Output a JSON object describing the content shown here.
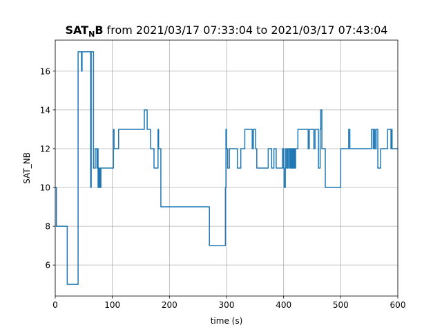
{
  "chart_data": {
    "type": "line",
    "title_bold_main": "SAT",
    "title_bold_sub": "N",
    "title_bold_end": "B",
    "title_rest": " from 2021/03/17 07:33:04 to 2021/03/17 07:43:04",
    "xlabel": "time (s)",
    "ylabel": "SAT_NB",
    "xlim": [
      0,
      600
    ],
    "ylim": [
      4.4,
      17.6
    ],
    "xticks": [
      0,
      100,
      200,
      300,
      400,
      500,
      600
    ],
    "xtick_labels": [
      "0",
      "100",
      "200",
      "300",
      "400",
      "500",
      "600"
    ],
    "yticks": [
      6,
      8,
      10,
      12,
      14,
      16
    ],
    "ytick_labels": [
      "6",
      "8",
      "10",
      "12",
      "14",
      "16"
    ],
    "grid": true,
    "step": "post",
    "series": [
      {
        "color": "#1f77b4",
        "x": [
          0,
          2,
          4,
          21,
          40,
          42,
          46,
          47,
          49,
          62,
          63,
          67,
          70,
          73,
          74,
          75,
          76,
          77,
          78,
          79,
          80,
          81,
          82,
          83,
          84,
          85,
          102,
          103,
          106,
          111,
          119,
          156,
          161,
          167,
          173,
          180,
          181,
          185,
          270,
          298,
          299,
          300,
          302,
          305,
          307,
          319,
          325,
          332,
          345,
          347,
          351,
          353,
          354,
          373,
          379,
          382,
          383,
          387,
          398,
          400,
          401,
          403,
          405,
          407,
          409,
          410,
          412,
          413,
          414,
          415,
          416,
          417,
          418,
          419,
          420,
          421,
          425,
          443,
          445,
          447,
          453,
          455,
          461,
          464,
          465,
          467,
          469,
          471,
          473,
          475,
          476,
          478,
          500,
          514,
          516,
          554,
          557,
          559,
          560,
          562,
          565,
          570,
          577,
          582,
          588,
          589,
          590,
          596,
          600
        ],
        "values": [
          10,
          8,
          8,
          5,
          17,
          17,
          16,
          17,
          17,
          10,
          17,
          11,
          12,
          11,
          12,
          10,
          11,
          10,
          11,
          10,
          11,
          11,
          11,
          11,
          11,
          11,
          13,
          12,
          12,
          13,
          13,
          14,
          13,
          12,
          11,
          13,
          12,
          9,
          7,
          10,
          13,
          12,
          11,
          12,
          12,
          11,
          12,
          13,
          12,
          13,
          12,
          11,
          11,
          12,
          11,
          11,
          12,
          11,
          12,
          11,
          10,
          12,
          11,
          12,
          11,
          12,
          11,
          12,
          11,
          12,
          11,
          12,
          11,
          12,
          11,
          12,
          13,
          12,
          13,
          13,
          12,
          13,
          11,
          13,
          14,
          12,
          12,
          12,
          10,
          10,
          10,
          10,
          12,
          13,
          12,
          13,
          12,
          13,
          12,
          13,
          11,
          12,
          12,
          13,
          12,
          13,
          12,
          12,
          12
        ]
      }
    ]
  }
}
